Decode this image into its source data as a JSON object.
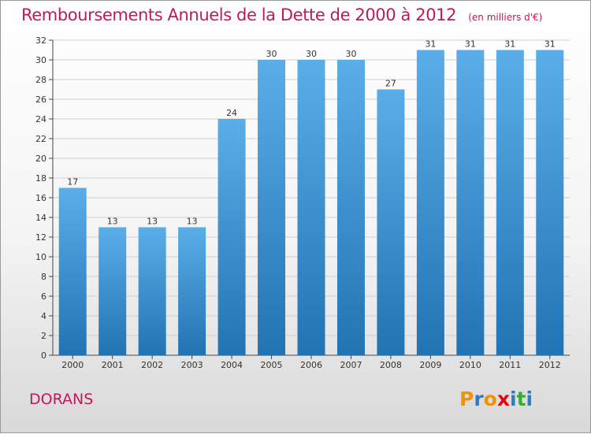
{
  "header": {
    "title": "Remboursements Annuels de la Dette de 2000 à 2012",
    "unit": "(en milliers d'€)"
  },
  "footer": {
    "commune": "DORANS",
    "logo_text": "Proxiti",
    "logo_colors": [
      "#f39200",
      "#2e7bc0",
      "#f39200",
      "#e30613",
      "#2e7bc0",
      "#3aaa35",
      "#2e7bc0"
    ]
  },
  "colors": {
    "title": "#c2185b",
    "bar_top": "#5aaee8",
    "bar_bottom": "#2273b3",
    "gridline": "#cfcfcf",
    "axis": "#444444"
  },
  "chart_data": {
    "type": "bar",
    "categories": [
      "2000",
      "2001",
      "2002",
      "2003",
      "2004",
      "2005",
      "2006",
      "2007",
      "2008",
      "2009",
      "2010",
      "2011",
      "2012"
    ],
    "values": [
      17,
      13,
      13,
      13,
      24,
      30,
      30,
      30,
      27,
      31,
      31,
      31,
      31
    ],
    "ylim": [
      0,
      32
    ],
    "yticks": [
      0,
      2,
      4,
      6,
      8,
      10,
      12,
      14,
      16,
      18,
      20,
      22,
      24,
      26,
      28,
      30,
      32
    ],
    "grid": true,
    "data_labels": true,
    "title": "Remboursements Annuels de la Dette de 2000 à 2012",
    "xlabel": "",
    "ylabel": ""
  }
}
